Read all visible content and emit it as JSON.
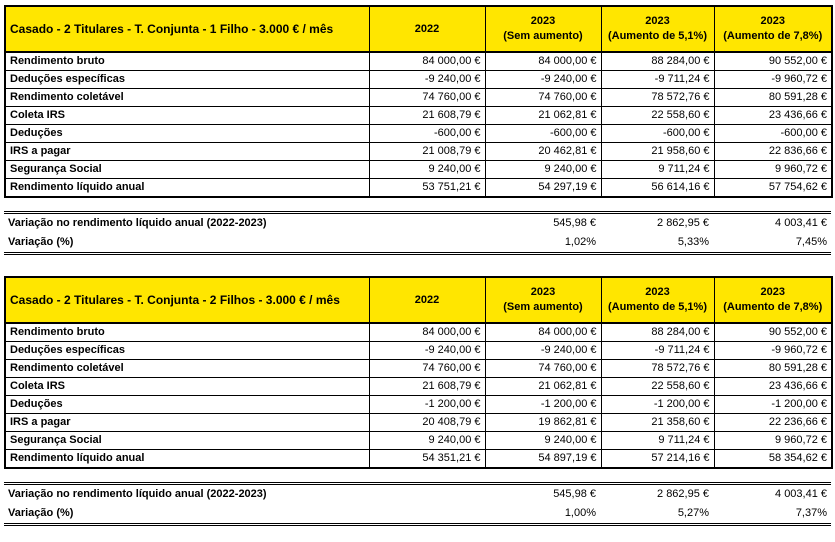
{
  "colors": {
    "header_bg": "#FFE600",
    "border": "#000000",
    "text": "#000000",
    "background": "#FFFFFF"
  },
  "tables": [
    {
      "title": "Casado - 2 Titulares - T. Conjunta - 1 Filho - 3.000 € / mês",
      "columns": [
        "2022",
        "2023\n(Sem aumento)",
        "2023\n(Aumento de 5,1%)",
        "2023\n(Aumento de 7,8%)"
      ],
      "rows": [
        {
          "label": "Rendimento bruto",
          "values": [
            "84 000,00 €",
            "84 000,00 €",
            "88 284,00 €",
            "90 552,00 €"
          ]
        },
        {
          "label": "Deduções específicas",
          "values": [
            "-9 240,00 €",
            "-9 240,00 €",
            "-9 711,24 €",
            "-9 960,72 €"
          ]
        },
        {
          "label": "Rendimento coletável",
          "values": [
            "74 760,00 €",
            "74 760,00 €",
            "78 572,76 €",
            "80 591,28 €"
          ]
        },
        {
          "label": "Coleta IRS",
          "values": [
            "21 608,79 €",
            "21 062,81 €",
            "22 558,60 €",
            "23 436,66 €"
          ]
        },
        {
          "label": "Deduções",
          "values": [
            "-600,00 €",
            "-600,00 €",
            "-600,00 €",
            "-600,00 €"
          ]
        },
        {
          "label": "IRS a pagar",
          "values": [
            "21 008,79 €",
            "20 462,81 €",
            "21 958,60 €",
            "22 836,66 €"
          ]
        },
        {
          "label": "Segurança Social",
          "values": [
            "9 240,00 €",
            "9 240,00 €",
            "9 711,24 €",
            "9 960,72 €"
          ]
        },
        {
          "label": "Rendimento líquido anual",
          "values": [
            "53 751,21 €",
            "54 297,19 €",
            "56 614,16 €",
            "57 754,62 €"
          ]
        }
      ],
      "variation_rows": [
        {
          "label": "Variação no rendimento líquido anual (2022-2023)",
          "values": [
            "545,98 €",
            "2 862,95 €",
            "4 003,41 €"
          ]
        },
        {
          "label": "Variação (%)",
          "values": [
            "1,02%",
            "5,33%",
            "7,45%"
          ]
        }
      ]
    },
    {
      "title": "Casado - 2 Titulares - T. Conjunta - 2 Filhos - 3.000 € / mês",
      "columns": [
        "2022",
        "2023\n(Sem aumento)",
        "2023\n(Aumento de 5,1%)",
        "2023\n(Aumento de 7,8%)"
      ],
      "rows": [
        {
          "label": "Rendimento bruto",
          "values": [
            "84 000,00 €",
            "84 000,00 €",
            "88 284,00 €",
            "90 552,00 €"
          ]
        },
        {
          "label": "Deduções específicas",
          "values": [
            "-9 240,00 €",
            "-9 240,00 €",
            "-9 711,24 €",
            "-9 960,72 €"
          ]
        },
        {
          "label": "Rendimento coletável",
          "values": [
            "74 760,00 €",
            "74 760,00 €",
            "78 572,76 €",
            "80 591,28 €"
          ]
        },
        {
          "label": "Coleta IRS",
          "values": [
            "21 608,79 €",
            "21 062,81 €",
            "22 558,60 €",
            "23 436,66 €"
          ]
        },
        {
          "label": "Deduções",
          "values": [
            "-1 200,00 €",
            "-1 200,00 €",
            "-1 200,00 €",
            "-1 200,00 €"
          ]
        },
        {
          "label": "IRS a pagar",
          "values": [
            "20 408,79 €",
            "19 862,81 €",
            "21 358,60 €",
            "22 236,66 €"
          ]
        },
        {
          "label": "Segurança Social",
          "values": [
            "9 240,00 €",
            "9 240,00 €",
            "9 711,24 €",
            "9 960,72 €"
          ]
        },
        {
          "label": "Rendimento líquido anual",
          "values": [
            "54 351,21 €",
            "54 897,19 €",
            "57 214,16 €",
            "58 354,62 €"
          ]
        }
      ],
      "variation_rows": [
        {
          "label": "Variação no rendimento líquido anual (2022-2023)",
          "values": [
            "545,98 €",
            "2 862,95 €",
            "4 003,41 €"
          ]
        },
        {
          "label": "Variação (%)",
          "values": [
            "1,00%",
            "5,27%",
            "7,37%"
          ]
        }
      ]
    }
  ]
}
